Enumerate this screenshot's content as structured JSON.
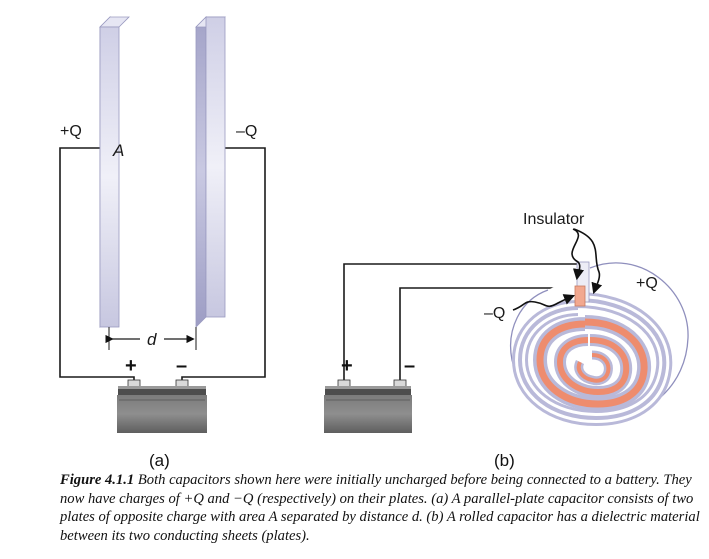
{
  "panel_a": {
    "plus_charge": "+Q",
    "minus_charge": "–Q",
    "area_label": "A",
    "distance_label": "d",
    "battery_plus": "+",
    "battery_minus": "–",
    "panel_label": "(a)"
  },
  "panel_b": {
    "insulator_label": "Insulator",
    "plus_charge": "+Q",
    "minus_charge": "–Q",
    "battery_plus": "+",
    "battery_minus": "–",
    "panel_label": "(b)"
  },
  "caption": {
    "figure_label": "Figure 4.1.1",
    "text": " Both capacitors shown here were initially uncharged before being connected to a battery. They now have charges of +Q and −Q (respectively) on their plates. (a) A parallel-plate capacitor consists of two plates of opposite charge with area A separated by distance d. (b) A rolled capacitor has a dielectric material between its two conducting sheets (plates)."
  },
  "colors": {
    "plate_light": "#dcdcef",
    "plate_mid": "#c3c3de",
    "plate_dark": "#a9a9cc",
    "orange_sheet": "#ee8c6e",
    "battery_body": "#6e6e6e",
    "wire": "#1a1a1a"
  }
}
